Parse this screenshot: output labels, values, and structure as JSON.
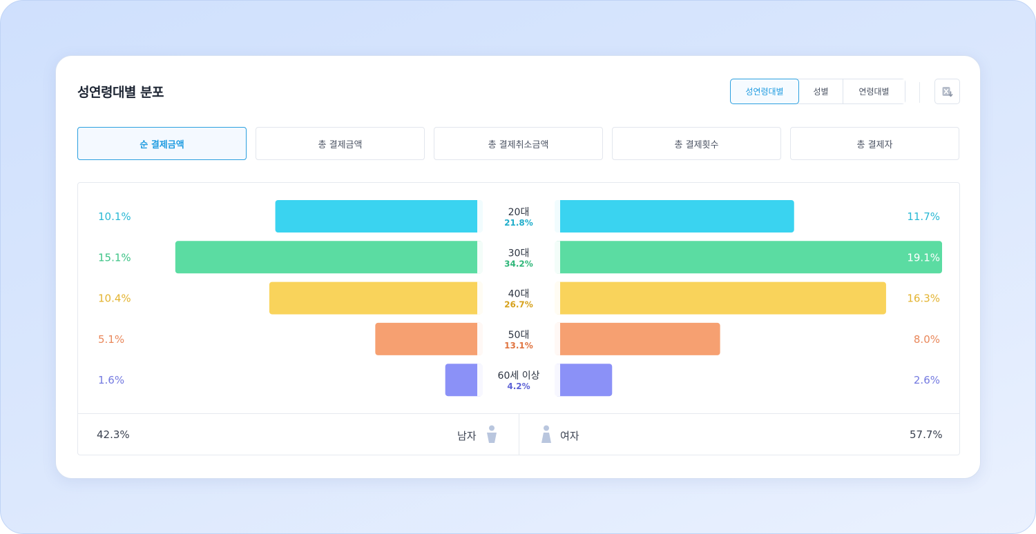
{
  "title": "성연령대별 분포",
  "view_tabs": [
    {
      "label": "성연령대별",
      "active": true
    },
    {
      "label": "성별",
      "active": false
    },
    {
      "label": "연령대별",
      "active": false
    }
  ],
  "excel_icon": "excel-download-icon",
  "metric_tabs": [
    {
      "label": "순 결제금액",
      "active": true
    },
    {
      "label": "총 결제금액",
      "active": false
    },
    {
      "label": "총 결제취소금액",
      "active": false
    },
    {
      "label": "총 결제횟수",
      "active": false
    },
    {
      "label": "총 결제자",
      "active": false
    }
  ],
  "chart_data": {
    "type": "bar",
    "orientation": "horizontal-butterfly",
    "categories": [
      "20대",
      "30대",
      "40대",
      "50대",
      "60세 이상"
    ],
    "category_totals": [
      "21.8%",
      "34.2%",
      "26.7%",
      "13.1%",
      "4.2%"
    ],
    "series": [
      {
        "name": "남자",
        "values": [
          10.1,
          15.1,
          10.4,
          5.1,
          1.6
        ]
      },
      {
        "name": "여자",
        "values": [
          11.7,
          19.1,
          16.3,
          8.0,
          2.6
        ]
      }
    ],
    "colors": [
      "#3ad3f0",
      "#5bdca2",
      "#f9d35b",
      "#f6a071",
      "#8b91f7"
    ],
    "label_colors": [
      "#29b8d4",
      "#3cc386",
      "#e3b330",
      "#e9875a",
      "#7379e0"
    ],
    "total_colors": [
      "#21aecb",
      "#2fb679",
      "#d6a11c",
      "#e07440",
      "#5e63d6"
    ],
    "value_unit": "%"
  },
  "footer": {
    "male_total": "42.3%",
    "male_label": "남자",
    "female_label": "여자",
    "female_total": "57.7%",
    "male_icon": "male-person-icon",
    "female_icon": "female-person-icon"
  }
}
